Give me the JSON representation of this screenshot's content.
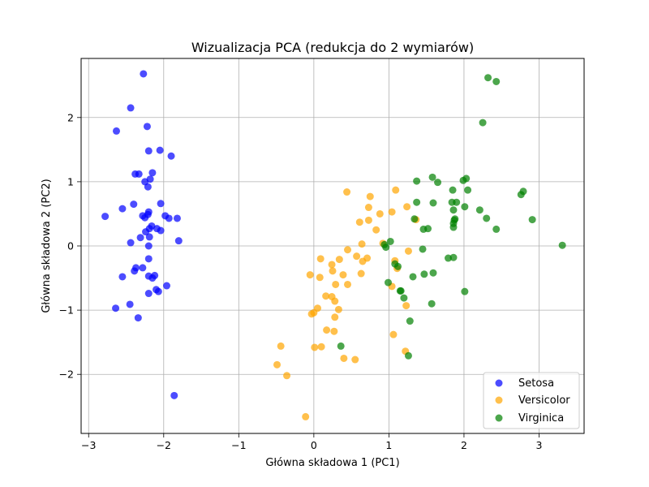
{
  "chart_data": {
    "type": "scatter",
    "title": "Wizualizacja PCA (redukcja do 2 wymiarów)",
    "xlabel": "Główna składowa 1 (PC1)",
    "ylabel": "Główna składowa 2 (PC2)",
    "xlim": [
      -3.1,
      3.6
    ],
    "ylim": [
      -2.92,
      2.92
    ],
    "xticks": [
      -3,
      -2,
      -1,
      0,
      1,
      2,
      3
    ],
    "yticks": [
      -2,
      -1,
      0,
      1,
      2
    ],
    "grid": true,
    "legend_position": "lower-right",
    "series": [
      {
        "name": "Setosa",
        "color": "#0000ff",
        "points": [
          [
            -2.27,
            2.68
          ],
          [
            -2.44,
            2.15
          ],
          [
            -2.63,
            1.79
          ],
          [
            -2.22,
            1.86
          ],
          [
            -2.05,
            1.49
          ],
          [
            -2.2,
            1.48
          ],
          [
            -1.9,
            1.4
          ],
          [
            -2.38,
            1.12
          ],
          [
            -2.33,
            1.12
          ],
          [
            -2.15,
            1.14
          ],
          [
            -2.18,
            1.04
          ],
          [
            -2.25,
            1.0
          ],
          [
            -2.21,
            0.92
          ],
          [
            -2.4,
            0.65
          ],
          [
            -2.04,
            0.66
          ],
          [
            -2.55,
            0.58
          ],
          [
            -2.2,
            0.53
          ],
          [
            -2.21,
            0.49
          ],
          [
            -2.28,
            0.47
          ],
          [
            -2.25,
            0.44
          ],
          [
            -2.78,
            0.46
          ],
          [
            -1.98,
            0.47
          ],
          [
            -1.93,
            0.43
          ],
          [
            -1.82,
            0.43
          ],
          [
            -2.16,
            0.31
          ],
          [
            -2.19,
            0.27
          ],
          [
            -2.09,
            0.27
          ],
          [
            -2.24,
            0.22
          ],
          [
            -2.04,
            0.24
          ],
          [
            -2.19,
            0.14
          ],
          [
            -2.31,
            0.13
          ],
          [
            -2.44,
            0.05
          ],
          [
            -1.8,
            0.08
          ],
          [
            -2.2,
            0.0
          ],
          [
            -2.2,
            -0.2
          ],
          [
            -2.37,
            -0.34
          ],
          [
            -2.28,
            -0.34
          ],
          [
            -2.39,
            -0.39
          ],
          [
            -2.2,
            -0.47
          ],
          [
            -2.12,
            -0.46
          ],
          [
            -2.15,
            -0.5
          ],
          [
            -2.55,
            -0.48
          ],
          [
            -1.96,
            -0.62
          ],
          [
            -2.1,
            -0.68
          ],
          [
            -2.07,
            -0.71
          ],
          [
            -2.2,
            -0.74
          ],
          [
            -2.45,
            -0.91
          ],
          [
            -2.64,
            -0.97
          ],
          [
            -2.34,
            -1.12
          ],
          [
            -1.86,
            -2.33
          ]
        ]
      },
      {
        "name": "Versicolor",
        "color": "#ffa500",
        "points": [
          [
            0.44,
            0.84
          ],
          [
            0.75,
            0.77
          ],
          [
            1.09,
            0.87
          ],
          [
            0.73,
            0.6
          ],
          [
            1.04,
            0.53
          ],
          [
            1.24,
            0.61
          ],
          [
            0.88,
            0.5
          ],
          [
            0.73,
            0.4
          ],
          [
            1.36,
            0.41
          ],
          [
            0.61,
            0.37
          ],
          [
            0.83,
            0.25
          ],
          [
            0.64,
            0.03
          ],
          [
            0.92,
            0.04
          ],
          [
            0.57,
            -0.16
          ],
          [
            0.45,
            -0.06
          ],
          [
            0.71,
            -0.19
          ],
          [
            0.65,
            -0.24
          ],
          [
            0.34,
            -0.21
          ],
          [
            0.09,
            -0.2
          ],
          [
            0.24,
            -0.29
          ],
          [
            1.08,
            -0.23
          ],
          [
            1.26,
            -0.08
          ],
          [
            1.11,
            -0.35
          ],
          [
            0.39,
            -0.45
          ],
          [
            0.25,
            -0.39
          ],
          [
            0.63,
            -0.43
          ],
          [
            -0.05,
            -0.45
          ],
          [
            0.08,
            -0.49
          ],
          [
            0.29,
            -0.6
          ],
          [
            0.45,
            -0.6
          ],
          [
            0.16,
            -0.78
          ],
          [
            0.24,
            -0.79
          ],
          [
            0.28,
            -0.86
          ],
          [
            0.05,
            -0.97
          ],
          [
            1.04,
            -0.63
          ],
          [
            0.33,
            -0.99
          ],
          [
            -0.03,
            -1.06
          ],
          [
            0.0,
            -1.04
          ],
          [
            0.28,
            -1.11
          ],
          [
            0.17,
            -1.31
          ],
          [
            0.27,
            -1.33
          ],
          [
            1.06,
            -1.38
          ],
          [
            0.1,
            -1.57
          ],
          [
            0.01,
            -1.58
          ],
          [
            0.4,
            -1.75
          ],
          [
            0.55,
            -1.77
          ],
          [
            -0.44,
            -1.56
          ],
          [
            -0.49,
            -1.85
          ],
          [
            -0.36,
            -2.02
          ],
          [
            1.22,
            -1.64
          ],
          [
            -0.11,
            -2.66
          ],
          [
            1.23,
            -0.93
          ]
        ]
      },
      {
        "name": "Virginica",
        "color": "#008000",
        "points": [
          [
            2.32,
            2.62
          ],
          [
            2.43,
            2.56
          ],
          [
            2.25,
            1.92
          ],
          [
            1.58,
            1.07
          ],
          [
            1.37,
            1.01
          ],
          [
            1.65,
            0.99
          ],
          [
            1.99,
            1.02
          ],
          [
            2.03,
            1.05
          ],
          [
            1.85,
            0.87
          ],
          [
            2.05,
            0.87
          ],
          [
            2.76,
            0.8
          ],
          [
            2.79,
            0.85
          ],
          [
            1.37,
            0.68
          ],
          [
            1.59,
            0.67
          ],
          [
            1.84,
            0.68
          ],
          [
            1.9,
            0.68
          ],
          [
            2.01,
            0.61
          ],
          [
            1.86,
            0.56
          ],
          [
            2.21,
            0.56
          ],
          [
            1.34,
            0.42
          ],
          [
            1.88,
            0.42
          ],
          [
            1.87,
            0.4
          ],
          [
            2.3,
            0.43
          ],
          [
            2.91,
            0.41
          ],
          [
            1.52,
            0.27
          ],
          [
            1.46,
            0.26
          ],
          [
            1.86,
            0.29
          ],
          [
            1.86,
            0.35
          ],
          [
            2.43,
            0.26
          ],
          [
            3.31,
            0.01
          ],
          [
            0.94,
            0.02
          ],
          [
            0.96,
            -0.02
          ],
          [
            1.02,
            0.07
          ],
          [
            1.45,
            -0.05
          ],
          [
            1.08,
            -0.28
          ],
          [
            1.12,
            -0.32
          ],
          [
            1.32,
            -0.48
          ],
          [
            1.79,
            -0.19
          ],
          [
            1.86,
            -0.18
          ],
          [
            1.47,
            -0.44
          ],
          [
            1.59,
            -0.42
          ],
          [
            0.99,
            -0.57
          ],
          [
            1.16,
            -0.7
          ],
          [
            1.15,
            -0.7
          ],
          [
            1.2,
            -0.81
          ],
          [
            1.57,
            -0.9
          ],
          [
            2.01,
            -0.71
          ],
          [
            1.28,
            -1.17
          ],
          [
            0.36,
            -1.56
          ],
          [
            1.26,
            -1.71
          ]
        ]
      }
    ]
  }
}
